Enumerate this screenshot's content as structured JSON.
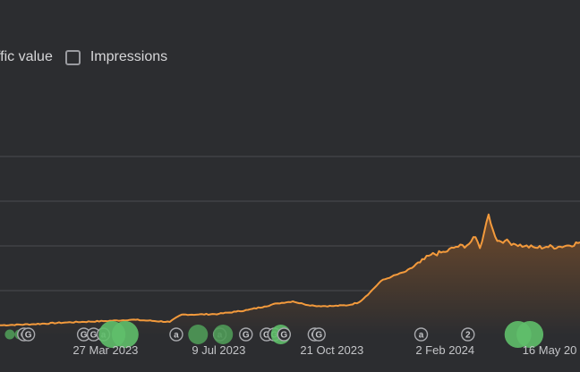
{
  "legend": {
    "items": [
      {
        "label": "ffic value",
        "checked": false,
        "checkbox_visible": false
      },
      {
        "label": "Impressions",
        "checked": false,
        "checkbox_visible": true
      }
    ]
  },
  "colors": {
    "background": "#2c2d30",
    "gridline": "#4a4b4f",
    "line": "#f39a3c",
    "area_top": "#6e4a2c",
    "area_bottom": "#2c2d30",
    "marker_green": "#5fbf6a",
    "marker_green_dark": "#4f9a58",
    "badge_stroke": "#a8a9ad",
    "axis_text": "#c4c5c8"
  },
  "chart_data": {
    "type": "area",
    "title": "",
    "xlabel": "",
    "ylabel": "",
    "grid": true,
    "x_ticks": [
      "27 Mar 2023",
      "9 Jul 2023",
      "21 Oct 2023",
      "2 Feb 2024",
      "16 May 20"
    ],
    "x_start": "2022-12-20",
    "x_end": "2024-06-05",
    "ylim": [
      0,
      100
    ],
    "y_gridlines": [
      20,
      40,
      60,
      80
    ],
    "series": [
      {
        "name": "",
        "points": [
          [
            "2022-12-20",
            4.5
          ],
          [
            "2023-01-20",
            5.0
          ],
          [
            "2023-02-20",
            5.8
          ],
          [
            "2023-03-27",
            6.4
          ],
          [
            "2023-04-20",
            7.0
          ],
          [
            "2023-05-05",
            6.6
          ],
          [
            "2023-05-25",
            6.0
          ],
          [
            "2023-06-05",
            9.3
          ],
          [
            "2023-06-20",
            9.3
          ],
          [
            "2023-07-09",
            9.6
          ],
          [
            "2023-07-25",
            10.6
          ],
          [
            "2023-08-05",
            11.4
          ],
          [
            "2023-08-20",
            12.9
          ],
          [
            "2023-09-01",
            14.3
          ],
          [
            "2023-09-15",
            15.2
          ],
          [
            "2023-09-25",
            14.0
          ],
          [
            "2023-10-05",
            13.2
          ],
          [
            "2023-10-21",
            13.1
          ],
          [
            "2023-11-05",
            13.5
          ],
          [
            "2023-11-15",
            14.8
          ],
          [
            "2023-11-25",
            19.2
          ],
          [
            "2023-12-05",
            24.3
          ],
          [
            "2023-12-15",
            26.3
          ],
          [
            "2023-12-28",
            28.6
          ],
          [
            "2024-01-10",
            32.6
          ],
          [
            "2024-01-20",
            36.0
          ],
          [
            "2024-02-02",
            37.3
          ],
          [
            "2024-02-12",
            39.6
          ],
          [
            "2024-02-22",
            40.2
          ],
          [
            "2024-03-01",
            43.9
          ],
          [
            "2024-03-05",
            39.0
          ],
          [
            "2024-03-09",
            46.2
          ],
          [
            "2024-03-13",
            54.1
          ],
          [
            "2024-03-17",
            47.2
          ],
          [
            "2024-03-21",
            42.2
          ],
          [
            "2024-03-28",
            42.3
          ],
          [
            "2024-04-05",
            41.0
          ],
          [
            "2024-04-15",
            39.9
          ],
          [
            "2024-04-25",
            39.2
          ],
          [
            "2024-05-05",
            39.6
          ],
          [
            "2024-05-16",
            39.6
          ],
          [
            "2024-05-25",
            40.2
          ],
          [
            "2024-06-05",
            41.6
          ]
        ]
      }
    ],
    "annotations": [
      {
        "date": "2022-12-29",
        "type": "circle",
        "size": "small",
        "shade": "dark"
      },
      {
        "date": "2023-01-07",
        "type": "circle",
        "size": "small",
        "shade": "dark"
      },
      {
        "date": "2023-01-11",
        "type": "badge",
        "letter": "G"
      },
      {
        "date": "2023-01-15",
        "type": "badge",
        "letter": "G"
      },
      {
        "date": "2023-03-07",
        "type": "badge",
        "letter": "G"
      },
      {
        "date": "2023-03-16",
        "type": "badge",
        "letter": "G"
      },
      {
        "date": "2023-03-25",
        "type": "badge",
        "letter": "a"
      },
      {
        "date": "2023-04-02",
        "type": "circle",
        "size": "large",
        "shade": "light"
      },
      {
        "date": "2023-04-14",
        "type": "circle",
        "size": "large",
        "shade": "light"
      },
      {
        "date": "2023-05-31",
        "type": "badge",
        "letter": "a"
      },
      {
        "date": "2023-06-20",
        "type": "circle",
        "size": "medium",
        "shade": "dark"
      },
      {
        "date": "2023-07-10",
        "type": "badge",
        "letter": "a"
      },
      {
        "date": "2023-07-13",
        "type": "circle",
        "size": "medium",
        "shade": "dark"
      },
      {
        "date": "2023-08-03",
        "type": "badge",
        "letter": "G"
      },
      {
        "date": "2023-08-22",
        "type": "badge",
        "letter": "G"
      },
      {
        "date": "2023-08-29",
        "type": "badge",
        "letter": "G"
      },
      {
        "date": "2023-09-04",
        "type": "circle",
        "size": "medium",
        "shade": "light"
      },
      {
        "date": "2023-09-07",
        "type": "badge",
        "letter": "G"
      },
      {
        "date": "2023-10-05",
        "type": "badge",
        "letter": "G"
      },
      {
        "date": "2023-10-09",
        "type": "badge",
        "letter": "G"
      },
      {
        "date": "2024-01-11",
        "type": "badge",
        "letter": "a"
      },
      {
        "date": "2024-02-23",
        "type": "badge",
        "letter": "2"
      },
      {
        "date": "2024-04-09",
        "type": "circle",
        "size": "large",
        "shade": "light"
      },
      {
        "date": "2024-04-20",
        "type": "circle",
        "size": "large",
        "shade": "light"
      }
    ]
  }
}
